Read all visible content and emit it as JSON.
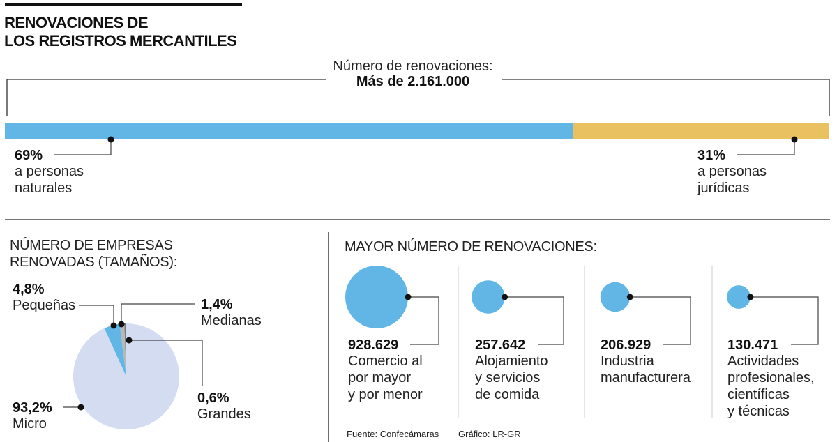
{
  "title": {
    "line1": "RENOVACIONES DE",
    "line2": "LOS REGISTROS MERCANTILES"
  },
  "total": {
    "label": "Número de renovaciones:",
    "value": "Más de 2.161.000"
  },
  "colors": {
    "blue": "#62b6e6",
    "gold": "#e9c160",
    "pie_micro": "#d3dcf0",
    "pie_pequenas": "#62b6e6",
    "pie_medianas": "#b8b8b8",
    "pie_grandes": "#7a7a7a",
    "line": "#333333"
  },
  "split": {
    "naturales": {
      "pct_label": "69%",
      "line1": "a personas",
      "line2": "naturales",
      "value": 69
    },
    "juridicas": {
      "pct_label": "31%",
      "line1": "a personas",
      "line2": "jurídicas",
      "value": 31
    }
  },
  "pie_section": {
    "title_line1": "NÚMERO DE EMPRESAS",
    "title_line2": "RENOVADAS (TAMAÑOS):",
    "slices": [
      {
        "name": "Pequeñas",
        "pct_label": "4,8%",
        "value": 4.8
      },
      {
        "name": "Medianas",
        "pct_label": "1,4%",
        "value": 1.4
      },
      {
        "name": "Grandes",
        "pct_label": "0,6%",
        "value": 0.6
      },
      {
        "name": "Micro",
        "pct_label": "93,2%",
        "value": 93.2
      }
    ]
  },
  "bubbles_section": {
    "title": "MAYOR NÚMERO DE RENOVACIONES:",
    "items": [
      {
        "value_label": "928.629",
        "value": 928629,
        "lines": [
          "Comercio al",
          "por mayor",
          "y por menor"
        ]
      },
      {
        "value_label": "257.642",
        "value": 257642,
        "lines": [
          "Alojamiento",
          "y servicios",
          "de comida"
        ]
      },
      {
        "value_label": "206.929",
        "value": 206929,
        "lines": [
          "Industria",
          "manufacturera"
        ]
      },
      {
        "value_label": "130.471",
        "value": 130471,
        "lines": [
          "Actividades",
          "profesionales,",
          "científicas",
          "y técnicas"
        ]
      }
    ]
  },
  "footer": {
    "source": "Fuente: Confecámaras",
    "credit": "Gráfico: LR-GR"
  },
  "chart_data": [
    {
      "type": "bar",
      "title": "Número de renovaciones: Más de 2.161.000",
      "categories": [
        "a personas naturales",
        "a personas jurídicas"
      ],
      "values": [
        69,
        31
      ],
      "unit": "%",
      "stacked": true
    },
    {
      "type": "pie",
      "title": "NÚMERO DE EMPRESAS RENOVADAS (TAMAÑOS):",
      "categories": [
        "Pequeñas",
        "Medianas",
        "Grandes",
        "Micro"
      ],
      "values": [
        4.8,
        1.4,
        0.6,
        93.2
      ],
      "unit": "%"
    },
    {
      "type": "scatter",
      "subtype": "bubble",
      "title": "MAYOR NÚMERO DE RENOVACIONES:",
      "categories": [
        "Comercio al por mayor y por menor",
        "Alojamiento y servicios de comida",
        "Industria manufacturera",
        "Actividades profesionales, científicas y técnicas"
      ],
      "values": [
        928629,
        257642,
        206929,
        130471
      ]
    }
  ]
}
